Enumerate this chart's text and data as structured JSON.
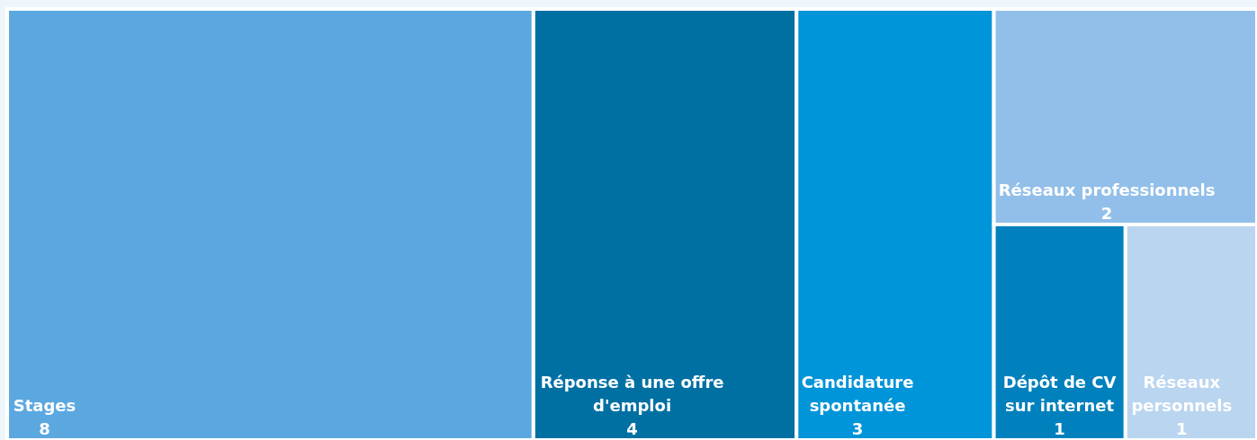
{
  "chart_data": {
    "type": "other",
    "categories": [
      "Stages",
      "Réponse à une offre d'emploi",
      "Candidature spontanée",
      "Réseaux professionnels",
      "Dépôt de CV sur internet",
      "Réseaux personnels"
    ],
    "values": [
      8,
      4,
      3,
      2,
      1,
      1
    ],
    "colors": [
      "#5ba8e0",
      "#0070a3",
      "#0094d8",
      "#92bfe9",
      "#0080bc",
      "#bad5ef"
    ],
    "data_labels": true
  }
}
